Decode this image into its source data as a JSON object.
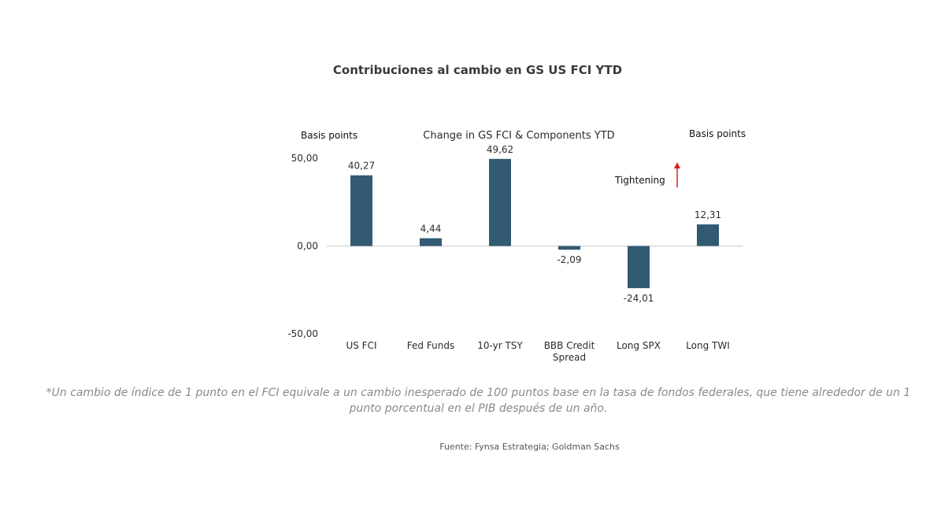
{
  "page": {
    "title": "Contribuciones al cambio en GS US FCI YTD",
    "footnote": "*Un cambio de índice de 1 punto en el FCI equivale a un cambio inesperado de 100 puntos base en la tasa de fondos federales, que tiene alrededor de un 1 punto porcentual en el PIB después de un año.",
    "source": "Fuente: Fynsa Estrategia; Goldman Sachs"
  },
  "colors": {
    "bar": "#335a73",
    "arrow": "#e01b1b",
    "axis": "#c8c8c8",
    "text": "#2b2b2b"
  },
  "chart_data": {
    "type": "bar",
    "title": "Change in GS FCI & Components YTD",
    "ylabel_left": "Basis points",
    "ylabel_right": "Basis points",
    "annotation": "Tightening",
    "categories": [
      "US FCI",
      "Fed Funds",
      "10-yr TSY",
      "BBB Credit Spread",
      "Long SPX",
      "Long TWI"
    ],
    "category_lines": [
      [
        "US FCI"
      ],
      [
        "Fed Funds"
      ],
      [
        "10-yr TSY"
      ],
      [
        "BBB Credit",
        "Spread"
      ],
      [
        "Long SPX"
      ],
      [
        "Long TWI"
      ]
    ],
    "values": [
      40.27,
      4.44,
      49.62,
      -2.09,
      -24.01,
      12.31
    ],
    "value_labels": [
      "40,27",
      "4,44",
      "49,62",
      "-2,09",
      "-24,01",
      "12,31"
    ],
    "yticks": [
      50,
      0,
      -50
    ],
    "ytick_labels": [
      "50,00",
      "0,00",
      "-50,00"
    ],
    "ylim": [
      -50,
      50
    ],
    "grid": false,
    "legend": "none"
  }
}
